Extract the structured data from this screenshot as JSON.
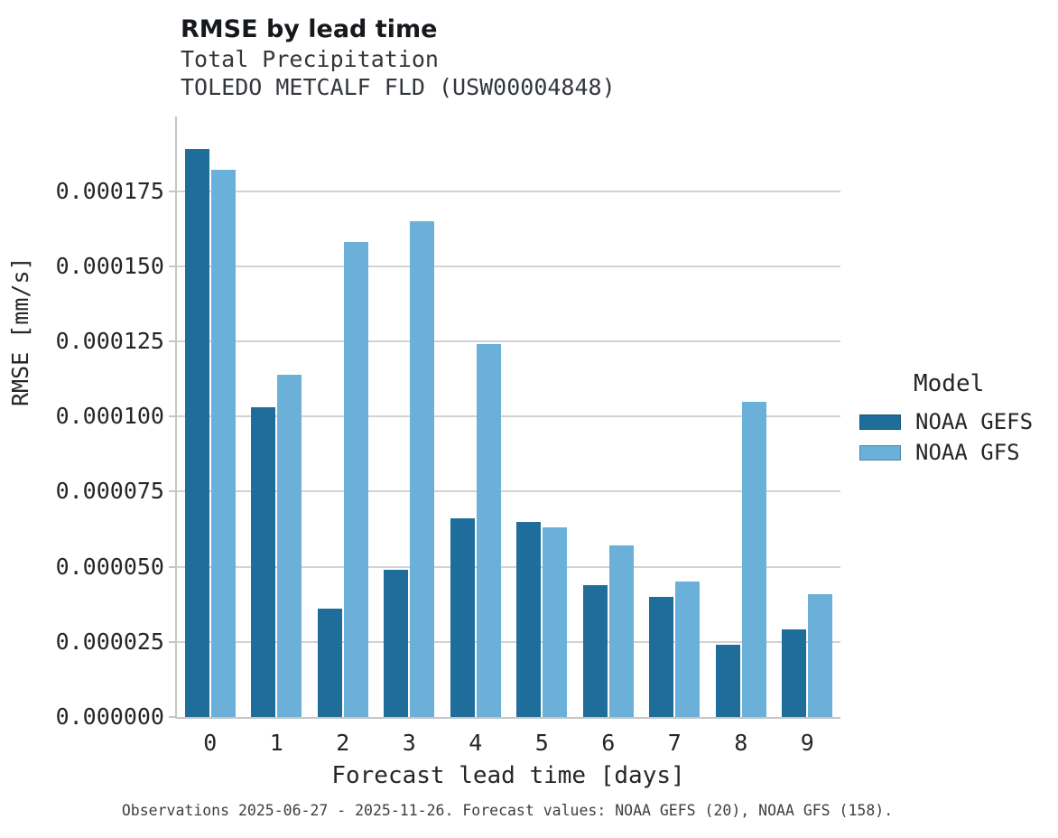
{
  "title": "RMSE by lead time",
  "subtitle_line1": "Total Precipitation",
  "subtitle_line2": "TOLEDO METCALF FLD (USW00004848)",
  "footer": "Observations 2025-06-27 - 2025-11-26. Forecast values: NOAA GEFS (20), NOAA GFS (158).",
  "colors": {
    "gefs_bar": "#1e6d9b",
    "gfs_bar": "#6bb0d8",
    "gridline": "#d2d2d2",
    "spine": "#c6c6c6",
    "text": "#262626",
    "footer_text": "#3d3f42"
  },
  "legend": {
    "title": "Model",
    "entries": [
      {
        "label": "NOAA GEFS",
        "color": "#1e6d9b"
      },
      {
        "label": "NOAA GFS",
        "color": "#6bb0d8"
      }
    ]
  },
  "chart_data": {
    "type": "bar",
    "title": "RMSE by lead time",
    "subtitle": [
      "Total Precipitation",
      "TOLEDO METCALF FLD (USW00004848)"
    ],
    "xlabel": "Forecast lead time [days]",
    "ylabel": "RMSE [mm/s]",
    "categories": [
      "0",
      "1",
      "2",
      "3",
      "4",
      "5",
      "6",
      "7",
      "8",
      "9"
    ],
    "series": [
      {
        "name": "NOAA GEFS",
        "color": "#1e6d9b",
        "values": [
          0.000189,
          0.000103,
          3.6e-05,
          4.9e-05,
          6.6e-05,
          6.5e-05,
          4.4e-05,
          4e-05,
          2.4e-05,
          2.9e-05
        ]
      },
      {
        "name": "NOAA GFS",
        "color": "#6bb0d8",
        "values": [
          0.000182,
          0.000114,
          0.000158,
          0.000165,
          0.000124,
          6.3e-05,
          5.7e-05,
          4.5e-05,
          0.000105,
          4.1e-05
        ]
      }
    ],
    "ylim": [
      0,
      0.0001998
    ],
    "yticks": [
      0.0,
      2.5e-05,
      5e-05,
      7.5e-05,
      0.0001,
      0.000125,
      0.00015,
      0.000175
    ],
    "ytick_labels": [
      "0.000000",
      "0.000025",
      "0.000050",
      "0.000075",
      "0.000100",
      "0.000125",
      "0.000150",
      "0.000175"
    ],
    "grid": true,
    "legend_title": "Model",
    "legend_position": "right of plot, middle"
  }
}
